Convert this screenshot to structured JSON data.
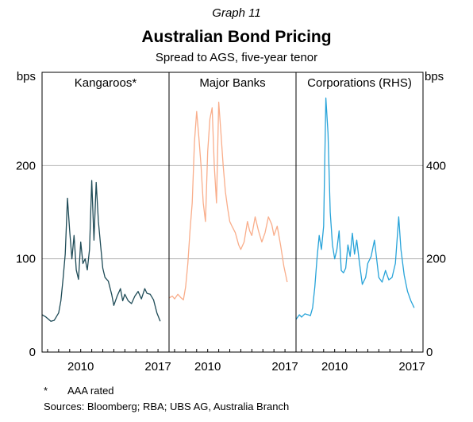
{
  "graph_label": "Graph 11",
  "title": "Australian Bond Pricing",
  "subtitle": "Spread to AGS, five-year tenor",
  "footnote": {
    "marker": "*",
    "text": "AAA rated"
  },
  "sources": "Sources:  Bloomberg; RBA; UBS AG, Australia Branch",
  "colors": {
    "kangaroos": "#1e4b57",
    "major_banks": "#f9ad8a",
    "corporations": "#27a3d9",
    "grid": "#b3b3b3"
  },
  "chart_data": {
    "type": "line",
    "left_axis": {
      "label": "bps",
      "ylim": [
        0,
        300
      ],
      "ticks": [
        0,
        100,
        200
      ]
    },
    "right_axis": {
      "label": "bps",
      "ylim": [
        0,
        600
      ],
      "ticks": [
        0,
        200,
        400
      ]
    },
    "xlim": [
      2006.5,
      2018.0
    ],
    "x_ticks": [
      2010,
      2017
    ],
    "grid": true,
    "panels": [
      {
        "title": "Kangaroos*",
        "axis": "left",
        "x": [
          2006.5,
          2006.8,
          2007.0,
          2007.3,
          2007.6,
          2007.8,
          2008.0,
          2008.2,
          2008.4,
          2008.6,
          2008.8,
          2009.0,
          2009.2,
          2009.4,
          2009.6,
          2009.8,
          2010.0,
          2010.2,
          2010.4,
          2010.6,
          2010.8,
          2011.0,
          2011.2,
          2011.4,
          2011.6,
          2011.8,
          2012.0,
          2012.2,
          2012.5,
          2012.8,
          2013.0,
          2013.3,
          2013.6,
          2013.8,
          2014.0,
          2014.3,
          2014.6,
          2014.9,
          2015.2,
          2015.5,
          2015.8,
          2016.0,
          2016.3,
          2016.6,
          2016.9,
          2017.2
        ],
        "values": [
          40,
          38,
          36,
          33,
          34,
          38,
          42,
          55,
          78,
          105,
          165,
          130,
          100,
          125,
          88,
          78,
          118,
          95,
          100,
          88,
          110,
          184,
          120,
          182,
          140,
          115,
          90,
          80,
          76,
          62,
          50,
          60,
          68,
          55,
          62,
          55,
          52,
          60,
          65,
          57,
          68,
          63,
          62,
          56,
          42,
          33
        ]
      },
      {
        "title": "Major Banks",
        "axis": "left",
        "x": [
          2006.5,
          2006.8,
          2007.0,
          2007.3,
          2007.6,
          2007.8,
          2008.0,
          2008.2,
          2008.4,
          2008.6,
          2008.8,
          2009.0,
          2009.2,
          2009.4,
          2009.6,
          2009.8,
          2010.0,
          2010.2,
          2010.4,
          2010.6,
          2010.8,
          2011.0,
          2011.2,
          2011.4,
          2011.6,
          2011.8,
          2012.0,
          2012.2,
          2012.5,
          2012.8,
          2013.0,
          2013.3,
          2013.6,
          2013.8,
          2014.0,
          2014.3,
          2014.6,
          2014.9,
          2015.2,
          2015.5,
          2015.8,
          2016.0,
          2016.3,
          2016.6,
          2016.9,
          2017.2
        ],
        "values": [
          58,
          60,
          57,
          62,
          58,
          56,
          70,
          95,
          130,
          160,
          225,
          258,
          230,
          200,
          160,
          140,
          215,
          250,
          262,
          200,
          160,
          268,
          235,
          200,
          172,
          155,
          140,
          135,
          128,
          115,
          110,
          118,
          140,
          130,
          125,
          145,
          130,
          118,
          128,
          145,
          137,
          125,
          135,
          115,
          92,
          75
        ]
      },
      {
        "title": "Corporations (RHS)",
        "axis": "right",
        "x": [
          2006.5,
          2006.8,
          2007.0,
          2007.3,
          2007.6,
          2007.8,
          2008.0,
          2008.2,
          2008.4,
          2008.6,
          2008.8,
          2009.0,
          2009.2,
          2009.4,
          2009.6,
          2009.8,
          2010.0,
          2010.2,
          2010.4,
          2010.6,
          2010.8,
          2011.0,
          2011.2,
          2011.4,
          2011.6,
          2011.8,
          2012.0,
          2012.2,
          2012.5,
          2012.8,
          2013.0,
          2013.3,
          2013.6,
          2013.8,
          2014.0,
          2014.3,
          2014.6,
          2014.9,
          2015.2,
          2015.5,
          2015.8,
          2016.0,
          2016.3,
          2016.6,
          2016.9,
          2017.2
        ],
        "values": [
          70,
          80,
          75,
          82,
          80,
          78,
          95,
          140,
          200,
          250,
          220,
          270,
          545,
          470,
          300,
          230,
          200,
          220,
          260,
          175,
          170,
          180,
          230,
          205,
          255,
          210,
          240,
          200,
          145,
          160,
          190,
          205,
          240,
          200,
          160,
          150,
          175,
          155,
          160,
          190,
          290,
          220,
          165,
          130,
          110,
          95
        ]
      }
    ]
  }
}
